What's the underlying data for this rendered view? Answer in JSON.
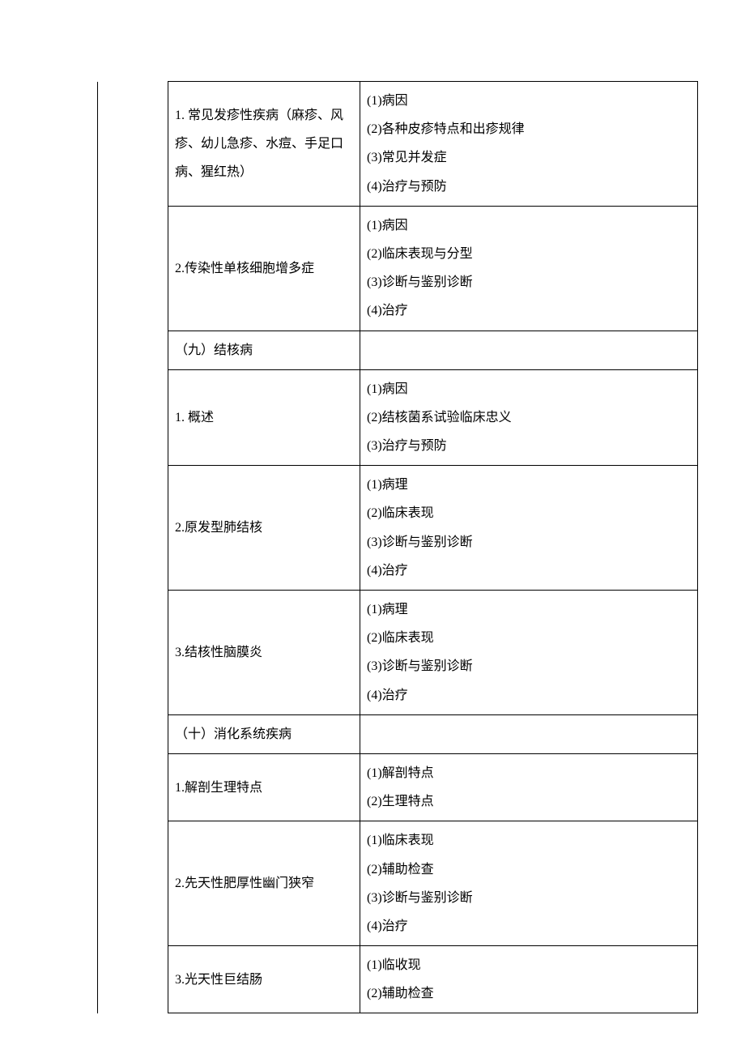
{
  "rows": [
    {
      "mid": "1. 常见发疹性疾病（麻疹、风疹、幼儿急疹、水痘、手足口病、猩红热）",
      "right": [
        "(1)病因",
        "(2)各种皮疹特点和出疹规律",
        "(3)常见并发症",
        "(4)治疗与预防"
      ]
    },
    {
      "mid": "2.传染性单核细胞增多症",
      "right": [
        "(1)病因",
        "(2)临床表现与分型",
        "(3)诊断与鉴别诊断",
        "(4)治疗"
      ]
    },
    {
      "mid": "（九）结核病",
      "right": []
    },
    {
      "mid": "1. 概述",
      "right": [
        "(1)病因",
        "(2)结核菌系试验临床忠义",
        "(3)治疗与预防"
      ]
    },
    {
      "mid": "2.原发型肺结核",
      "right": [
        "(1)病理",
        "(2)临床表现",
        "(3)诊断与鉴别诊断",
        "(4)治疗"
      ]
    },
    {
      "mid": "3.结核性脑膜炎",
      "right": [
        "(1)病理",
        "(2)临床表现",
        "(3)诊断与鉴别诊断",
        "(4)治疗"
      ]
    },
    {
      "mid": "（十）消化系统疾病",
      "right": []
    },
    {
      "mid": "1.解剖生理特点",
      "right": [
        "(1)解剖特点",
        "(2)生理特点"
      ]
    },
    {
      "mid": "2.先天性肥厚性幽门狭窄",
      "right": [
        "(1)临床表现",
        "(2)辅助检查",
        "(3)诊断与鉴别诊断",
        "(4)治疗"
      ]
    },
    {
      "mid": "3.光天性巨结肠",
      "right": [
        "(1)临收现",
        "(2)辅助检查"
      ]
    }
  ]
}
